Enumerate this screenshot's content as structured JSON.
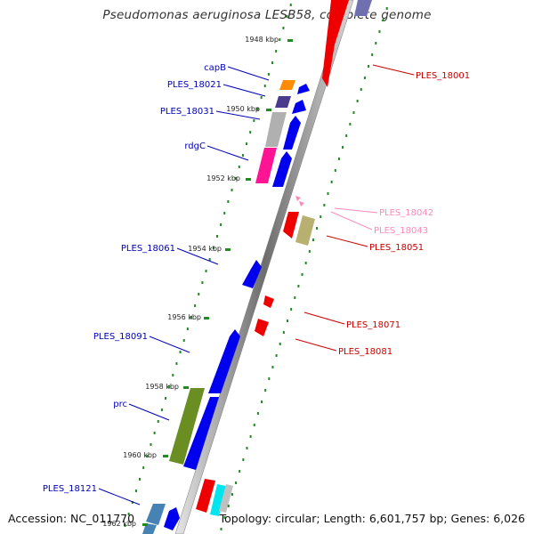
{
  "title": "Pseudomonas aeruginosa LESB58, complete genome",
  "footer": {
    "accession": "Accession: NC_011770",
    "summary": "Topology: circular; Length: 6,601,757 bp; Genes: 6,026"
  },
  "tick_labels": [
    "1948 kbp",
    "1950 kbp",
    "1952 kbp",
    "1954 kbp",
    "1956 kbp",
    "1958 kbp",
    "1960 kbp",
    "1962 kbp"
  ],
  "colors": {
    "forward_gene": "#0000ee",
    "reverse_gene": "#ee0000",
    "tick": "#228b22",
    "backbone": "#888888",
    "pseudo_label": "#ff88bb"
  },
  "left_labels": [
    {
      "text": "capB",
      "color": "#0000bb"
    },
    {
      "text": "PLES_18021",
      "color": "#0000bb"
    },
    {
      "text": "PLES_18031",
      "color": "#0000bb"
    },
    {
      "text": "rdgC",
      "color": "#0000bb"
    },
    {
      "text": "PLES_18061",
      "color": "#0000bb"
    },
    {
      "text": "PLES_18091",
      "color": "#0000bb"
    },
    {
      "text": "prc",
      "color": "#0000bb"
    },
    {
      "text": "PLES_18121",
      "color": "#0000bb"
    }
  ],
  "right_labels": [
    {
      "text": "PLES_18001",
      "color": "#cc0000"
    },
    {
      "text": "PLES_18042",
      "color": "#ff88bb"
    },
    {
      "text": "PLES_18043",
      "color": "#ff88bb"
    },
    {
      "text": "PLES_18051",
      "color": "#cc0000"
    },
    {
      "text": "PLES_18071",
      "color": "#cc0000"
    },
    {
      "text": "PLES_18081",
      "color": "#cc0000"
    }
  ]
}
